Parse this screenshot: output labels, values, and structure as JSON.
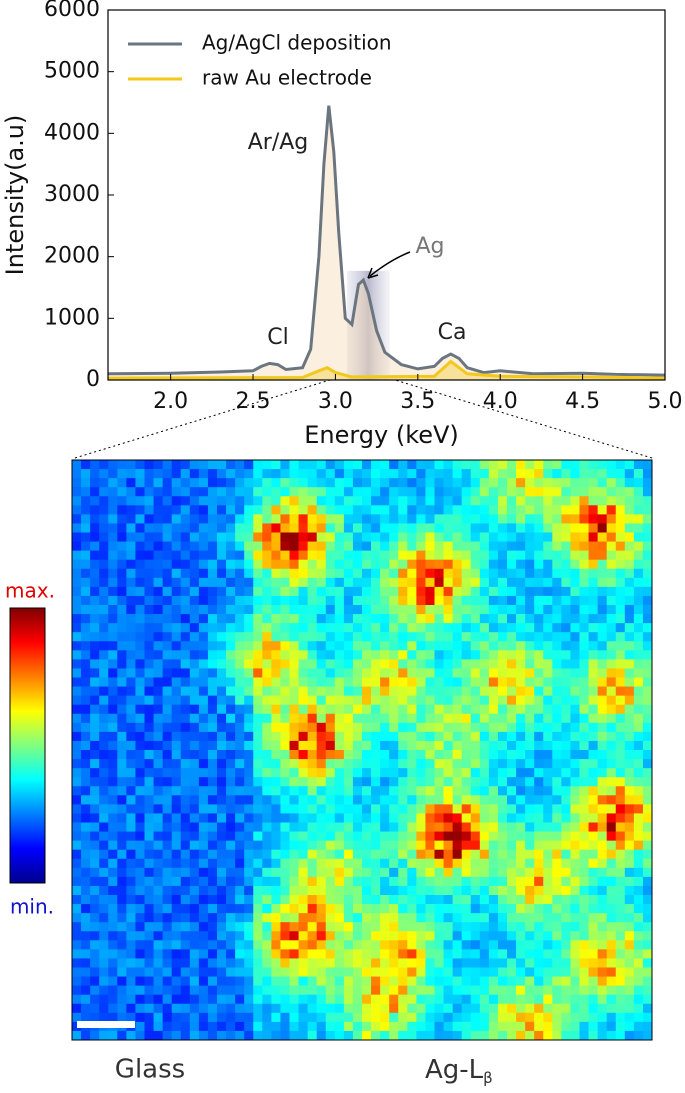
{
  "chart_data": {
    "type": "line",
    "x_label": "Energy (keV)",
    "y_label": "Intensity(a.u)",
    "xlim": [
      1.62,
      5.0
    ],
    "ylim": [
      0,
      6000
    ],
    "xticks": [
      {
        "value": 2,
        "label": "2.0"
      },
      {
        "value": 2.5,
        "label": "2.5"
      },
      {
        "value": 3,
        "label": "3.0"
      },
      {
        "value": 3.5,
        "label": "3.5"
      },
      {
        "value": 4,
        "label": "4.0"
      },
      {
        "value": 4.5,
        "label": "4.5"
      },
      {
        "value": 5,
        "label": "5.0"
      }
    ],
    "yticks": [
      0,
      1000,
      2000,
      3000,
      4000,
      5000,
      6000
    ],
    "legend": "upper left",
    "annotations": [
      "Ar/Ag",
      "Ag",
      "Cl",
      "Ca"
    ],
    "series": [
      {
        "name": "Ag/AgCl deposition",
        "color": "#6b7580",
        "x": [
          1.62,
          2.0,
          2.3,
          2.5,
          2.55,
          2.6,
          2.65,
          2.7,
          2.8,
          2.85,
          2.9,
          2.93,
          2.96,
          2.99,
          3.02,
          3.06,
          3.1,
          3.14,
          3.17,
          3.2,
          3.25,
          3.3,
          3.4,
          3.5,
          3.6,
          3.65,
          3.7,
          3.75,
          3.8,
          3.9,
          4.0,
          4.2,
          4.5,
          4.7,
          5.0
        ],
        "values": [
          100,
          110,
          130,
          150,
          220,
          270,
          250,
          170,
          200,
          500,
          2000,
          3500,
          4450,
          3700,
          2400,
          1000,
          900,
          1550,
          1620,
          1400,
          800,
          450,
          250,
          180,
          220,
          350,
          420,
          350,
          200,
          120,
          150,
          100,
          110,
          90,
          80
        ]
      },
      {
        "name": "raw Au electrode",
        "color": "#f2c81d",
        "x": [
          1.62,
          2.8,
          2.9,
          2.95,
          3.0,
          3.1,
          3.6,
          3.7,
          3.8,
          4.0,
          4.5,
          5.0
        ],
        "values": [
          30,
          40,
          150,
          200,
          120,
          50,
          60,
          300,
          100,
          60,
          50,
          30
        ]
      }
    ]
  },
  "map": {
    "colorbar_max": "max.",
    "colorbar_min": "min.",
    "left_label": "Glass",
    "right_label": "Ag-L",
    "right_label_sub": "β"
  }
}
